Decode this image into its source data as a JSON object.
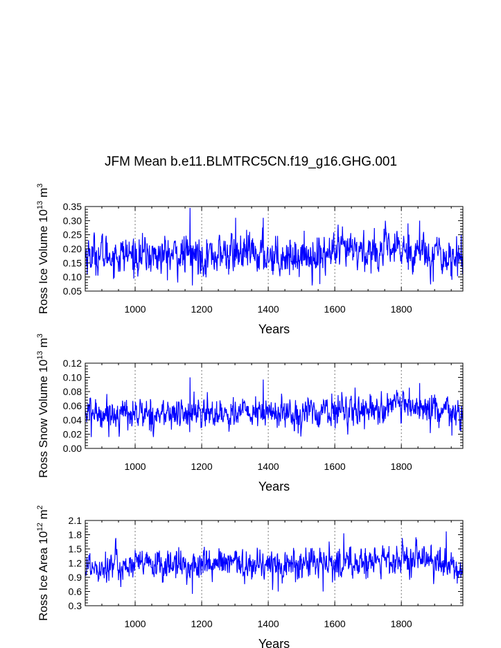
{
  "title": "JFM Mean b.e11.BLMTRC5CN.f19_g16.GHG.001",
  "colors": {
    "series": "#0000ff",
    "axis": "#000000",
    "grid": "#555555"
  },
  "chart_data": [
    {
      "type": "line",
      "name": "ice-volume",
      "ylabel_main": "Ross Ice Volume 10",
      "ylabel_exp": "13",
      "ylabel_unit": " m",
      "ylabel_unit_exp": "3",
      "xlabel": "Years",
      "xlim": [
        850,
        1985
      ],
      "ylim": [
        0.05,
        0.35
      ],
      "xticks": [
        1000,
        1200,
        1400,
        1600,
        1800
      ],
      "yticks": [
        0.05,
        0.1,
        0.15,
        0.2,
        0.25,
        0.3,
        0.35
      ],
      "yticklabels": [
        "0.05",
        "0.10",
        "0.15",
        "0.20",
        "0.25",
        "0.30",
        "0.35"
      ],
      "gridlines_x": [
        1000,
        1200,
        1400,
        1600,
        1800
      ],
      "series": [
        {
          "name": "Ross Ice Volume",
          "mean": 0.18,
          "sd": 0.035,
          "min": 0.07,
          "max": 0.345,
          "trend": [
            [
              850,
              0.18
            ],
            [
              1100,
              0.175
            ],
            [
              1300,
              0.182
            ],
            [
              1500,
              0.175
            ],
            [
              1650,
              0.19
            ],
            [
              1800,
              0.195
            ],
            [
              1880,
              0.19
            ],
            [
              1985,
              0.16
            ]
          ],
          "peaks": [
            [
              1165,
              0.345
            ],
            [
              1172,
              0.07
            ],
            [
              1302,
              0.31
            ],
            [
              1385,
              0.31
            ],
            [
              1555,
              0.075
            ],
            [
              1820,
              0.29
            ],
            [
              1855,
              0.3
            ],
            [
              1952,
              0.09
            ]
          ]
        }
      ]
    },
    {
      "type": "line",
      "name": "snow-volume",
      "ylabel_main": "Ross Snow Volume 10",
      "ylabel_exp": "13",
      "ylabel_unit": " m",
      "ylabel_unit_exp": "3",
      "xlabel": "Years",
      "xlim": [
        850,
        1985
      ],
      "ylim": [
        0.0,
        0.12
      ],
      "xticks": [
        1000,
        1200,
        1400,
        1600,
        1800
      ],
      "yticks": [
        0.0,
        0.02,
        0.04,
        0.06,
        0.08,
        0.1,
        0.12
      ],
      "yticklabels": [
        "0.00",
        "0.02",
        "0.04",
        "0.06",
        "0.08",
        "0.10",
        "0.12"
      ],
      "gridlines_x": [
        1000,
        1200,
        1400,
        1600,
        1800
      ],
      "series": [
        {
          "name": "Ross Snow Volume",
          "mean": 0.05,
          "sd": 0.011,
          "min": 0.016,
          "max": 0.1,
          "trend": [
            [
              850,
              0.05
            ],
            [
              1100,
              0.048
            ],
            [
              1300,
              0.05
            ],
            [
              1500,
              0.049
            ],
            [
              1650,
              0.055
            ],
            [
              1800,
              0.058
            ],
            [
              1880,
              0.055
            ],
            [
              1985,
              0.045
            ]
          ],
          "peaks": [
            [
              868,
              0.016
            ],
            [
              1165,
              0.1
            ],
            [
              1385,
              0.097
            ],
            [
              1855,
              0.092
            ],
            [
              1952,
              0.018
            ]
          ]
        }
      ]
    },
    {
      "type": "line",
      "name": "ice-area",
      "ylabel_main": "Ross Ice Area 10",
      "ylabel_exp": "12",
      "ylabel_unit": " m",
      "ylabel_unit_exp": "2",
      "xlabel": "Years",
      "xlim": [
        850,
        1985
      ],
      "ylim": [
        0.3,
        2.1
      ],
      "xticks": [
        1000,
        1200,
        1400,
        1600,
        1800
      ],
      "yticks": [
        0.3,
        0.6,
        0.9,
        1.2,
        1.5,
        1.8,
        2.1
      ],
      "yticklabels": [
        "0.3",
        "0.6",
        "0.9",
        "1.2",
        "1.5",
        "1.8",
        "2.1"
      ],
      "gridlines_x": [
        1000,
        1200,
        1400,
        1600,
        1800
      ],
      "series": [
        {
          "name": "Ross Ice Area",
          "mean": 1.18,
          "sd": 0.17,
          "min": 0.55,
          "max": 1.87,
          "trend": [
            [
              850,
              1.15
            ],
            [
              1100,
              1.15
            ],
            [
              1300,
              1.18
            ],
            [
              1500,
              1.17
            ],
            [
              1650,
              1.2
            ],
            [
              1800,
              1.25
            ],
            [
              1880,
              1.25
            ],
            [
              1985,
              1.05
            ]
          ],
          "peaks": [
            [
              1172,
              0.55
            ],
            [
              1430,
              0.6
            ],
            [
              1565,
              0.6
            ],
            [
              1627,
              1.83
            ],
            [
              1935,
              1.87
            ]
          ]
        }
      ]
    }
  ]
}
